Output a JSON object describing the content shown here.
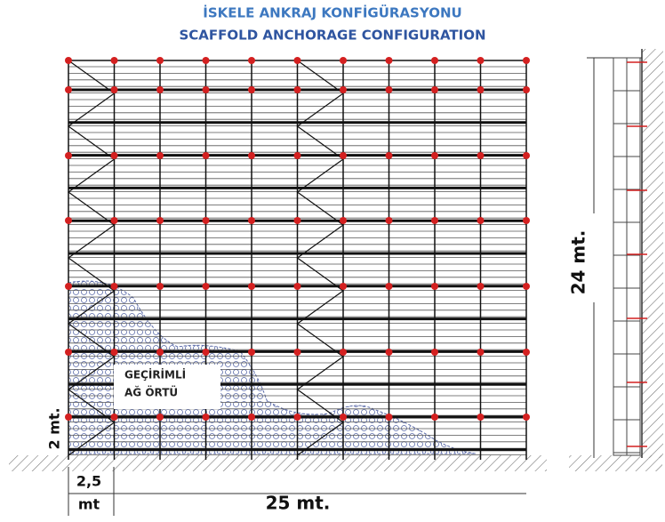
{
  "title": {
    "line1": "İSKELE ANKRAJ KONFİGÜRASYONU",
    "line2": "SCAFFOLD ANCHORAGE CONFIGURATION"
  },
  "labels": {
    "net_line1": "GEÇİRİMLİ",
    "net_line2": "AĞ ÖRTÜ",
    "bay_height": "2 mt.",
    "bay_width_value": "2,5",
    "bay_width_unit": "mt",
    "total_width": "25 mt.",
    "total_height": "24 mt."
  }
}
